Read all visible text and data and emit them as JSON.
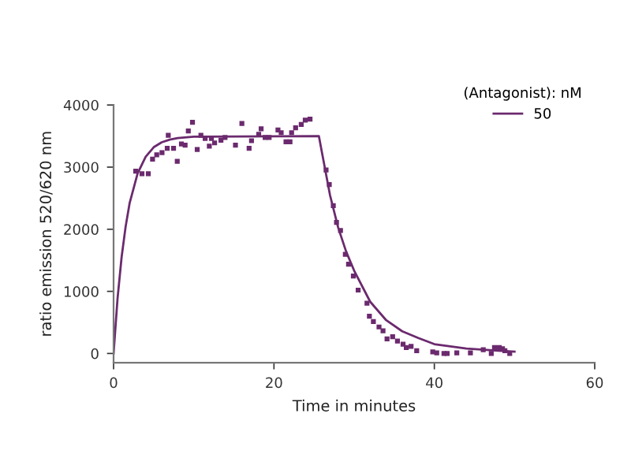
{
  "chart_data": {
    "type": "scatter",
    "xlabel": "Time in minutes",
    "ylabel": "ratio emission 520/620 nm",
    "legend_title": "(Antagonist): nM",
    "legend": "top right",
    "grid": false,
    "xlim": [
      0,
      60
    ],
    "xticks": [
      0,
      20,
      40,
      60
    ],
    "ylim": [
      -150,
      4000
    ],
    "yticks": [
      0,
      1000,
      2000,
      3000,
      4000
    ],
    "series": [
      {
        "marker": "square",
        "color": "#6b2a6e",
        "x": [
          2.76,
          3.54,
          4.33,
          4.86,
          5.38,
          6.04,
          6.69,
          6.82,
          7.48,
          7.94,
          8.46,
          8.92,
          9.32,
          9.84,
          10.43,
          10.89,
          11.42,
          11.94,
          12.2,
          12.6,
          13.39,
          13.9,
          15.2,
          16.0,
          16.9,
          17.2,
          18.1,
          18.4,
          18.9,
          19.4,
          20.5,
          20.9,
          21.5,
          22.0,
          22.2,
          22.7,
          23.4,
          23.9,
          24.5,
          26.5,
          26.9,
          27.4,
          27.8,
          28.3,
          28.9,
          29.3,
          29.9,
          30.5,
          31.6,
          31.9,
          32.4,
          33.1,
          33.6,
          34.1,
          34.8,
          35.4,
          36.1,
          36.5,
          37.1,
          37.8,
          39.8,
          40.3,
          41.2,
          41.6,
          42.8,
          44.5,
          46.1,
          47.1,
          47.5,
          48.1,
          48.5,
          48.8,
          49.4
        ],
        "values": [
          2936,
          2894,
          2894,
          3129,
          3198,
          3233,
          3303,
          3512,
          3303,
          3094,
          3373,
          3355,
          3582,
          3721,
          3285,
          3512,
          3460,
          3338,
          3460,
          3390,
          3433,
          3477,
          3355,
          3704,
          3303,
          3425,
          3529,
          3616,
          3477,
          3477,
          3599,
          3555,
          3407,
          3407,
          3555,
          3634,
          3686,
          3756,
          3773,
          2954,
          2719,
          2379,
          2109,
          1979,
          1595,
          1438,
          1247,
          1020,
          810,
          601,
          515,
          427,
          366,
          235,
          270,
          200,
          148,
          96,
          113,
          44,
          26,
          9,
          0,
          0,
          9,
          9,
          61,
          0,
          96,
          96,
          78,
          44,
          0
        ]
      },
      {
        "type": "line",
        "name": "50",
        "color": "#6b2a6e",
        "marker": "none",
        "line_style": "solid",
        "x": [
          0,
          0.5,
          1,
          1.5,
          2,
          3,
          4,
          5,
          6,
          7,
          8,
          10,
          25.6,
          26,
          27,
          28,
          29,
          30,
          32,
          34,
          36,
          38,
          40,
          44,
          48,
          50
        ],
        "values": [
          0,
          893,
          1550,
          2040,
          2420,
          2900,
          3167,
          3320,
          3400,
          3443,
          3468,
          3490,
          3500,
          3226,
          2543,
          2031,
          1640,
          1334,
          833,
          535,
          357,
          250,
          150,
          80,
          45,
          30
        ]
      }
    ]
  }
}
